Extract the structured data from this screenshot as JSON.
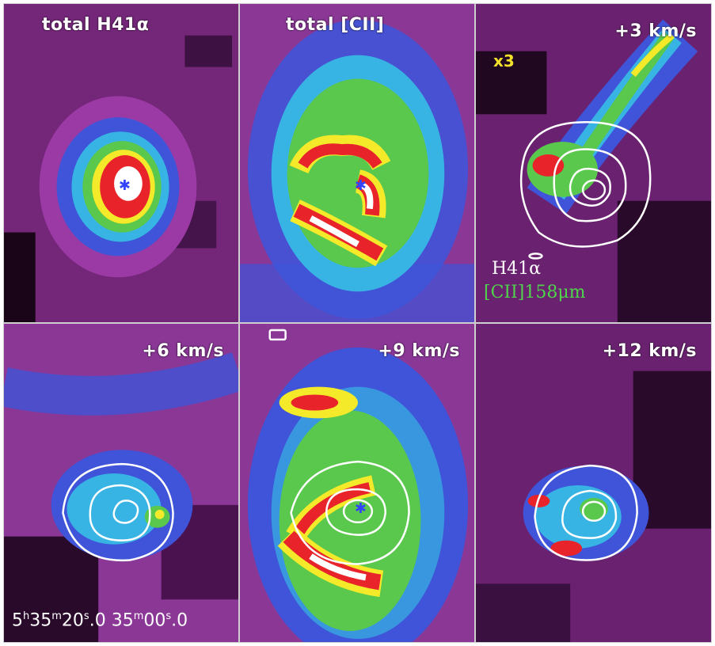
{
  "panels": [
    {
      "id": "p1",
      "label": "total H41α"
    },
    {
      "id": "p2",
      "label": "total [CII]"
    },
    {
      "id": "p3",
      "label": "+3 km/s",
      "scale_note": "x3",
      "legend_contour": "H41α",
      "legend_color": "[CII]158μm"
    },
    {
      "id": "p4",
      "label": "+6 km/s"
    },
    {
      "id": "p5",
      "label": "+9 km/s"
    },
    {
      "id": "p6",
      "label": "+12 km/s"
    }
  ],
  "axis": {
    "ra_a": {
      "h": "5",
      "m": "35",
      "s": "20",
      "frac": "0"
    },
    "ra_b": {
      "m": "35",
      "s": "00",
      "frac": "0"
    }
  },
  "colors": {
    "dark": "#2a0a2a",
    "magenta": "#a23ea8",
    "blue": "#3c4fd6",
    "cyan": "#35b6e6",
    "green": "#58c64a",
    "yellow": "#f4ea2a",
    "red": "#e8242a",
    "white": "#ffffff",
    "contour": "#ffffff",
    "star": "#3344ff"
  }
}
